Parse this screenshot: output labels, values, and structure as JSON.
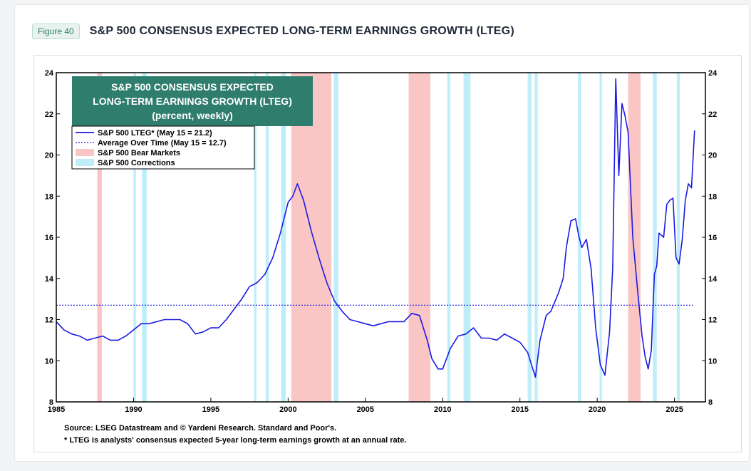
{
  "figure_label": "Figure 40",
  "figure_title": "S&P 500 CONSENSUS EXPECTED LONG-TERM EARNINGS GROWTH (LTEG)",
  "chart_data": {
    "type": "line",
    "title_lines": [
      "S&P 500 CONSENSUS EXPECTED",
      "LONG-TERM EARNINGS GROWTH (LTEG)",
      "(percent, weekly)"
    ],
    "xlabel": "",
    "ylabel": "",
    "xlim": [
      1985,
      2027
    ],
    "ylim": [
      8,
      24
    ],
    "x_ticks": [
      1985,
      1990,
      1995,
      2000,
      2005,
      2010,
      2015,
      2020,
      2025
    ],
    "y_ticks": [
      8,
      10,
      12,
      14,
      16,
      18,
      20,
      22,
      24
    ],
    "legend": [
      {
        "label": "S&P 500 LTEG* (May 15 = 21.2)",
        "kind": "line",
        "color": "#1a1ae6"
      },
      {
        "label": "Average Over Time (May 15 = 12.7)",
        "kind": "dotted",
        "color": "#1a1ae6"
      },
      {
        "label": "S&P 500 Bear Markets",
        "kind": "patch",
        "color": "#f9c6c6"
      },
      {
        "label": "S&P 500 Corrections",
        "kind": "patch",
        "color": "#bfeef9"
      }
    ],
    "legend_position": "top-left",
    "average": 12.7,
    "bear_markets": [
      [
        1987.65,
        1987.95
      ],
      [
        2000.2,
        2002.8
      ],
      [
        2007.8,
        2009.2
      ],
      [
        2022.0,
        2022.8
      ]
    ],
    "corrections": [
      [
        1990.0,
        1990.15
      ],
      [
        1990.55,
        1990.85
      ],
      [
        1997.8,
        1997.95
      ],
      [
        1998.55,
        1998.75
      ],
      [
        1999.55,
        1999.85
      ],
      [
        2002.95,
        2003.25
      ],
      [
        2010.3,
        2010.5
      ],
      [
        2011.35,
        2011.8
      ],
      [
        2015.5,
        2015.75
      ],
      [
        2015.95,
        2016.15
      ],
      [
        2018.75,
        2018.95
      ],
      [
        2020.15,
        2020.3
      ],
      [
        2023.6,
        2023.85
      ],
      [
        2025.15,
        2025.35
      ]
    ],
    "series": [
      {
        "name": "S&P 500 LTEG*",
        "color": "#1a1ae6",
        "x": [
          1985.0,
          1985.5,
          1986.0,
          1986.5,
          1987.0,
          1987.5,
          1988.0,
          1988.5,
          1989.0,
          1989.5,
          1990.0,
          1990.5,
          1991.0,
          1991.5,
          1992.0,
          1992.5,
          1993.0,
          1993.5,
          1994.0,
          1994.5,
          1995.0,
          1995.5,
          1996.0,
          1996.5,
          1997.0,
          1997.5,
          1998.0,
          1998.5,
          1999.0,
          1999.5,
          2000.0,
          2000.3,
          2000.6,
          2001.0,
          2001.5,
          2002.0,
          2002.5,
          2003.0,
          2003.5,
          2004.0,
          2004.5,
          2005.0,
          2005.5,
          2006.0,
          2006.5,
          2007.0,
          2007.5,
          2008.0,
          2008.5,
          2009.0,
          2009.3,
          2009.7,
          2010.0,
          2010.5,
          2011.0,
          2011.5,
          2012.0,
          2012.5,
          2013.0,
          2013.5,
          2014.0,
          2014.5,
          2015.0,
          2015.5,
          2016.0,
          2016.3,
          2016.7,
          2017.0,
          2017.5,
          2017.8,
          2018.0,
          2018.3,
          2018.6,
          2018.8,
          2019.0,
          2019.3,
          2019.6,
          2019.9,
          2020.2,
          2020.5,
          2020.8,
          2021.0,
          2021.2,
          2021.4,
          2021.6,
          2021.8,
          2022.0,
          2022.3,
          2022.6,
          2022.9,
          2023.1,
          2023.3,
          2023.5,
          2023.7,
          2023.85,
          2024.0,
          2024.3,
          2024.5,
          2024.7,
          2024.9,
          2025.1,
          2025.3,
          2025.5,
          2025.7,
          2025.9,
          2026.1,
          2026.3
        ],
        "y": [
          11.9,
          11.5,
          11.3,
          11.2,
          11.0,
          11.1,
          11.2,
          11.0,
          11.0,
          11.2,
          11.5,
          11.8,
          11.8,
          11.9,
          12.0,
          12.0,
          12.0,
          11.8,
          11.3,
          11.4,
          11.6,
          11.6,
          12.0,
          12.5,
          13.0,
          13.6,
          13.8,
          14.2,
          15.0,
          16.2,
          17.7,
          18.0,
          18.6,
          17.8,
          16.3,
          15.0,
          13.8,
          12.9,
          12.4,
          12.0,
          11.9,
          11.8,
          11.7,
          11.8,
          11.9,
          11.9,
          11.9,
          12.3,
          12.2,
          11.0,
          10.1,
          9.6,
          9.6,
          10.6,
          11.2,
          11.3,
          11.6,
          11.1,
          11.1,
          11.0,
          11.3,
          11.1,
          10.9,
          10.4,
          9.2,
          11.0,
          12.2,
          12.4,
          13.3,
          14.0,
          15.5,
          16.8,
          16.9,
          16.1,
          15.5,
          15.9,
          14.5,
          11.6,
          9.8,
          9.3,
          11.4,
          14.5,
          23.7,
          19.0,
          22.5,
          21.9,
          21.1,
          16.0,
          13.5,
          11.2,
          10.2,
          9.6,
          10.5,
          14.2,
          14.6,
          16.2,
          16.0,
          17.6,
          17.8,
          17.9,
          15.0,
          14.7,
          15.9,
          17.8,
          18.6,
          18.4,
          21.2
        ]
      }
    ]
  },
  "source_lines": [
    "Source: LSEG Datastream and © Yardeni Research. Standard and Poor's.",
    "* LTEG is analysts' consensus expected 5-year long-term earnings growth at an annual rate."
  ]
}
